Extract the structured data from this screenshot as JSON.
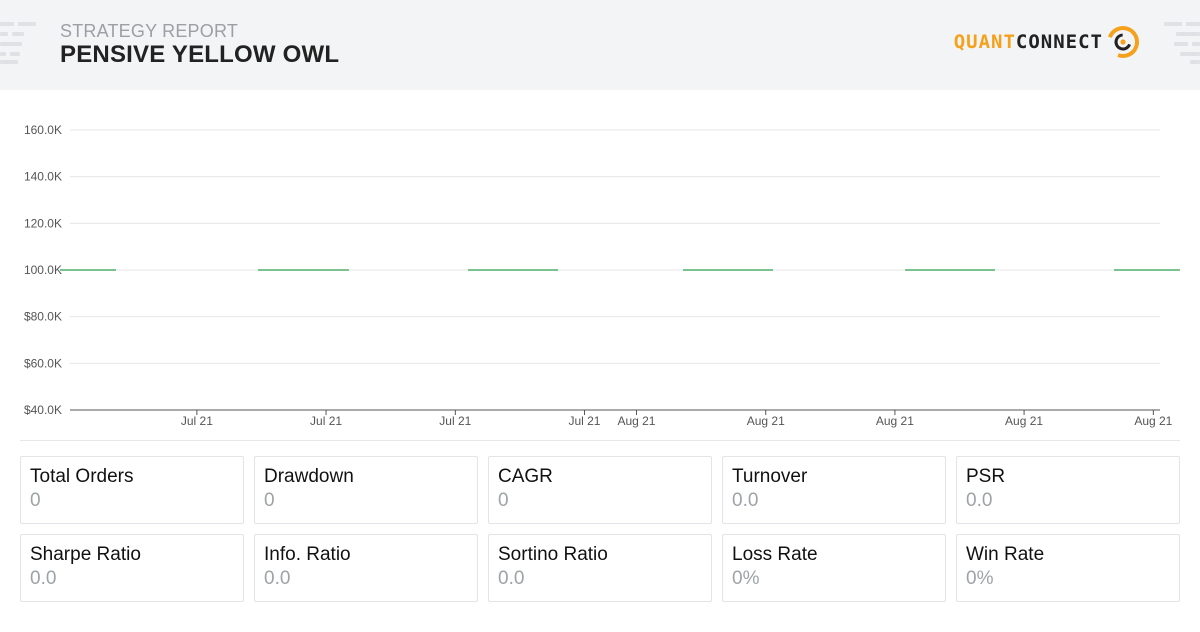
{
  "header": {
    "label": "STRATEGY REPORT",
    "title": "PENSIVE YELLOW OWL",
    "logo_word1": "QUANT",
    "logo_word2": "CONNECT"
  },
  "colors": {
    "accent": "#f5a11c",
    "series_line": "#2e9e4f",
    "grid": "#e6e6e6",
    "axis": "#555555"
  },
  "chart_data": {
    "type": "line",
    "title": "",
    "xlabel": "",
    "ylabel": "",
    "ylim": [
      40000,
      160000
    ],
    "y_ticks": [
      {
        "value": 160000,
        "label": "160.0K"
      },
      {
        "value": 140000,
        "label": "140.0K"
      },
      {
        "value": 120000,
        "label": "120.0K"
      },
      {
        "value": 100000,
        "label": "100.0K"
      },
      {
        "value": 80000,
        "label": "$80.0K"
      },
      {
        "value": 60000,
        "label": "$60.0K"
      },
      {
        "value": 40000,
        "label": "$40.0K"
      }
    ],
    "x_ticks": [
      {
        "pos": 0.1164,
        "label": "Jul 21"
      },
      {
        "pos": 0.2349,
        "label": "Jul 21"
      },
      {
        "pos": 0.3535,
        "label": "Jul 21"
      },
      {
        "pos": 0.472,
        "label": "Jul 21"
      },
      {
        "pos": 0.5197,
        "label": "Aug 21"
      },
      {
        "pos": 0.6383,
        "label": "Aug 21"
      },
      {
        "pos": 0.7568,
        "label": "Aug 21"
      },
      {
        "pos": 0.8753,
        "label": "Aug 21"
      },
      {
        "pos": 0.9939,
        "label": "Aug 21"
      }
    ],
    "grid": true,
    "legend": "none",
    "series": [
      {
        "segments": [
          {
            "x_start": -0.0092,
            "x_end": 0.0422,
            "y": 100000
          },
          {
            "x_start": 0.1725,
            "x_end": 0.2559,
            "y": 100000
          },
          {
            "x_start": 0.3651,
            "x_end": 0.4477,
            "y": 100000
          },
          {
            "x_start": 0.5624,
            "x_end": 0.645,
            "y": 100000
          },
          {
            "x_start": 0.7661,
            "x_end": 0.8486,
            "y": 100000
          },
          {
            "x_start": 0.9578,
            "x_end": 1.0183,
            "y": 100000
          }
        ]
      }
    ]
  },
  "stats": [
    {
      "label": "Total Orders",
      "value": "0"
    },
    {
      "label": "Drawdown",
      "value": "0"
    },
    {
      "label": "CAGR",
      "value": "0"
    },
    {
      "label": "Turnover",
      "value": "0.0"
    },
    {
      "label": "PSR",
      "value": "0.0"
    },
    {
      "label": "Sharpe Ratio",
      "value": "0.0"
    },
    {
      "label": "Info. Ratio",
      "value": "0.0"
    },
    {
      "label": "Sortino Ratio",
      "value": "0.0"
    },
    {
      "label": "Loss Rate",
      "value": "0%"
    },
    {
      "label": "Win Rate",
      "value": "0%"
    }
  ]
}
